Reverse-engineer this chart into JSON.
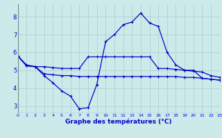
{
  "xlabel": "Graphe des températures (°C)",
  "bg_color": "#cceaea",
  "grid_color": "#aacccc",
  "line_color": "#0000cc",
  "x_ticks": [
    0,
    1,
    2,
    3,
    4,
    5,
    6,
    7,
    8,
    9,
    10,
    11,
    12,
    13,
    14,
    15,
    16,
    17,
    18,
    19,
    20,
    21,
    22,
    23
  ],
  "y_ticks": [
    3,
    4,
    5,
    6,
    7,
    8
  ],
  "xlim": [
    0,
    23
  ],
  "ylim": [
    2.6,
    8.7
  ],
  "line1_x": [
    0,
    1,
    2,
    3,
    4,
    5,
    6,
    7,
    8,
    9,
    10,
    11,
    12,
    13,
    14,
    15,
    16,
    17,
    18,
    19,
    20,
    21,
    22,
    23
  ],
  "line1_y": [
    5.8,
    5.3,
    5.2,
    4.7,
    4.3,
    3.85,
    3.55,
    2.85,
    2.9,
    4.2,
    6.6,
    7.0,
    7.55,
    7.7,
    8.2,
    7.65,
    7.45,
    6.0,
    5.3,
    5.0,
    5.0,
    4.55,
    4.5,
    4.45
  ],
  "line2_x": [
    0,
    1,
    2,
    3,
    4,
    5,
    6,
    7,
    8,
    9,
    10,
    11,
    12,
    13,
    14,
    15,
    16,
    17,
    18,
    19,
    20,
    21,
    22,
    23
  ],
  "line2_y": [
    5.8,
    5.25,
    5.2,
    5.2,
    5.15,
    5.1,
    5.1,
    5.1,
    5.75,
    5.75,
    5.75,
    5.75,
    5.75,
    5.75,
    5.75,
    5.75,
    5.1,
    5.1,
    5.05,
    5.0,
    4.95,
    4.9,
    4.7,
    4.6
  ],
  "line3_x": [
    0,
    1,
    2,
    3,
    4,
    5,
    6,
    7,
    8,
    9,
    10,
    11,
    12,
    13,
    14,
    15,
    16,
    17,
    18,
    19,
    20,
    21,
    22,
    23
  ],
  "line3_y": [
    5.8,
    5.25,
    5.2,
    4.8,
    4.75,
    4.7,
    4.7,
    4.65,
    4.65,
    4.65,
    4.65,
    4.65,
    4.65,
    4.65,
    4.65,
    4.65,
    4.65,
    4.65,
    4.65,
    4.6,
    4.6,
    4.55,
    4.5,
    4.45
  ]
}
